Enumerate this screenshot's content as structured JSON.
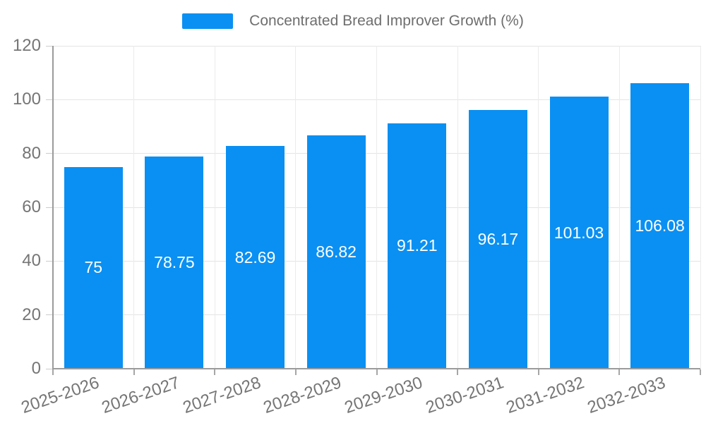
{
  "chart_data": {
    "type": "bar",
    "title": "Concentrated Bread Improver Growth (%)",
    "categories": [
      "2025-2026",
      "2026-2027",
      "2027-2028",
      "2028-2029",
      "2029-2030",
      "2030-2031",
      "2031-2032",
      "2032-2033"
    ],
    "values": [
      75,
      78.75,
      82.69,
      86.82,
      91.21,
      96.17,
      101.03,
      106.08
    ],
    "value_labels": [
      "75",
      "78.75",
      "82.69",
      "86.82",
      "91.21",
      "96.17",
      "101.03",
      "106.08"
    ],
    "xlabel": "",
    "ylabel": "",
    "ylim": [
      0,
      120
    ],
    "yticks": [
      0,
      20,
      40,
      60,
      80,
      100,
      120
    ],
    "grid": true,
    "legend_position": "top",
    "bar_color": "#0a90f2",
    "value_label_color": "#ffffff",
    "axis_text_color": "#757575",
    "grid_color": "#e4e4e4",
    "axis_line_color": "#9b9b9b"
  }
}
